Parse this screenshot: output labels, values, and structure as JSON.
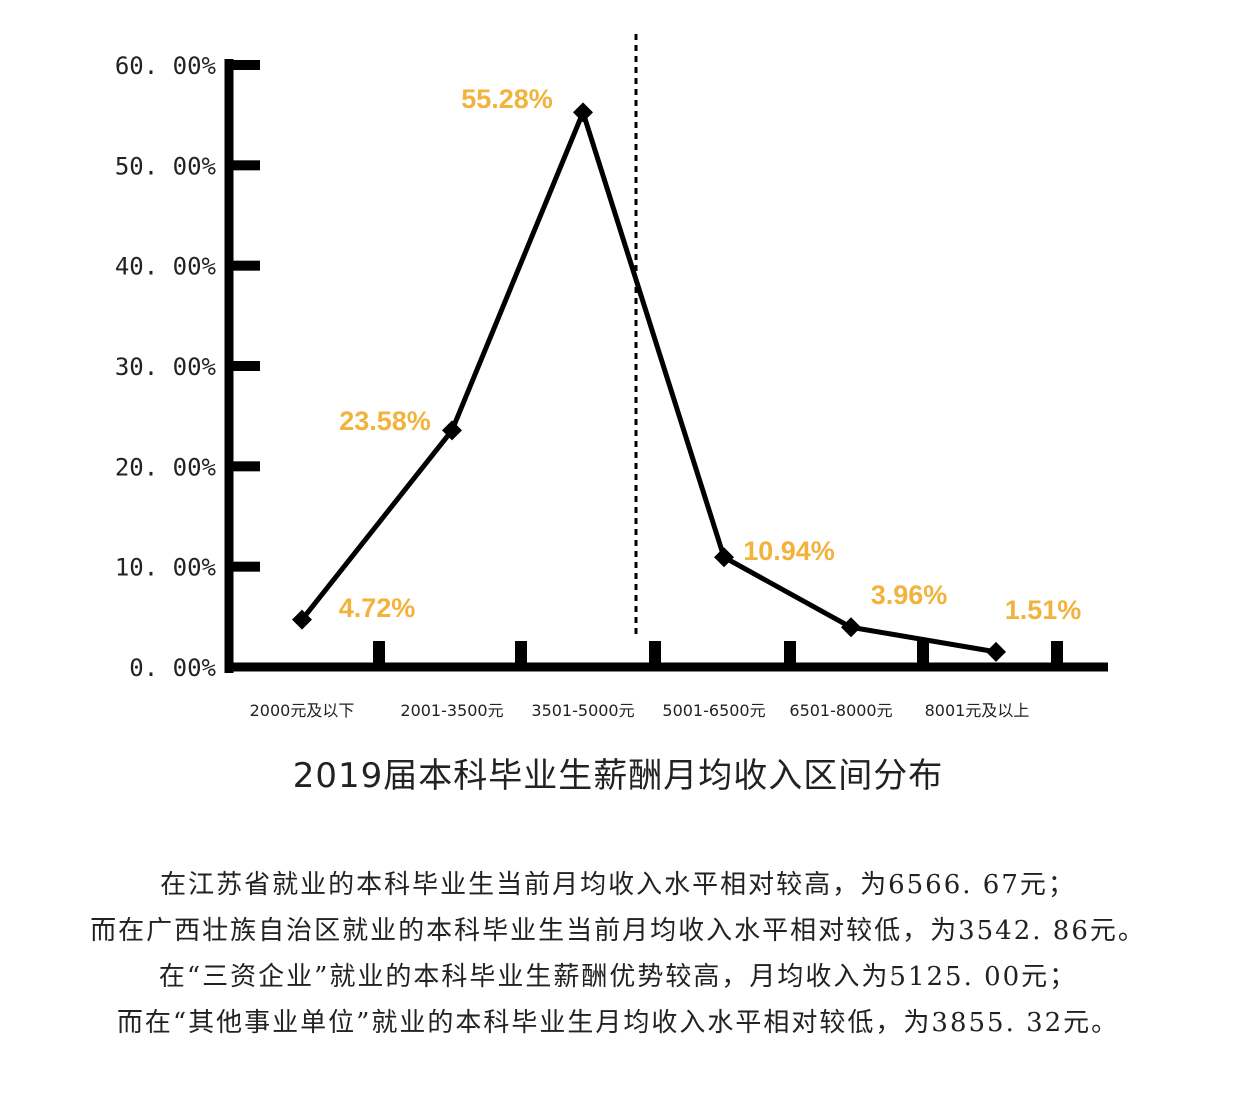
{
  "colors": {
    "line": "#000000",
    "label": "#F2B33D",
    "text": "#222222"
  },
  "chart_data": {
    "type": "line",
    "title": "2019届本科毕业生薪酬月均收入区间分布",
    "categories": [
      "2000元及以下",
      "2001-3500元",
      "3501-5000元",
      "5001-6500元",
      "6501-8000元",
      "8001元及以上"
    ],
    "series": [
      {
        "values": [
          4.72,
          23.58,
          55.28,
          10.94,
          3.96,
          1.51
        ],
        "labels": [
          "4.72%",
          "23.58%",
          "55.28%",
          "10.94%",
          "3.96%",
          "1.51%"
        ]
      }
    ],
    "ylim": [
      0,
      60
    ],
    "yticks": [
      "0. 00%",
      "10. 00%",
      "20. 00%",
      "30. 00%",
      "40. 00%",
      "50. 00%",
      "60. 00%"
    ],
    "marker": "diamond",
    "reference_line": "dashed vertical line between 3501-5000元 and 5001-6500元",
    "grid": false
  },
  "notes": [
    "在江苏省就业的本科毕业生当前月均收入水平相对较高，为6566. 67元；",
    "而在广西壮族自治区就业的本科毕业生当前月均收入水平相对较低，为3542. 86元。",
    "在“三资企业”就业的本科毕业生薪酬优势较高，月均收入为5125. 00元；",
    "而在“其他事业单位”就业的本科毕业生月均收入水平相对较低，为3855. 32元。"
  ]
}
